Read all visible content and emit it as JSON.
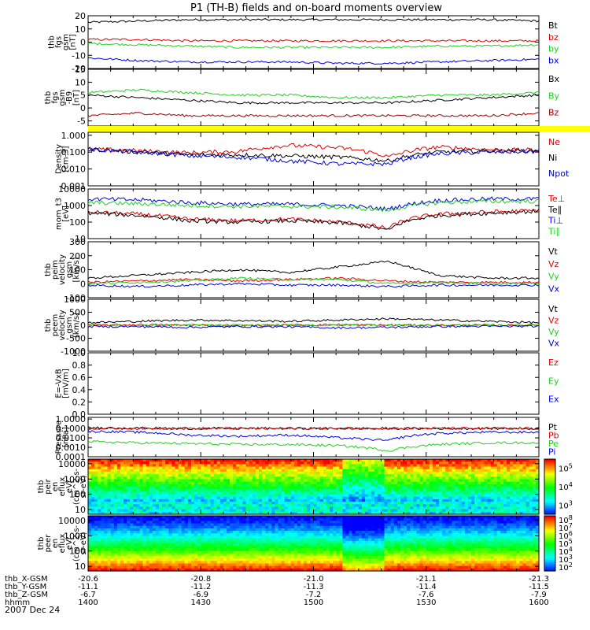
{
  "title": "P1 (TH-B) fields and on-board moments overview",
  "date_label": "2007 Dec 24",
  "colors": {
    "black": "#000000",
    "red": "#e00000",
    "green": "#20d020",
    "blue": "#0000e0",
    "darkred": "#a00000",
    "yellow": "#ffff00"
  },
  "chart_data": [
    {
      "type": "line",
      "ylabel": [
        "thb",
        "fgs",
        "gsm",
        "[nT]"
      ],
      "ylim": [
        -20,
        20
      ],
      "yticks": [
        "20",
        "10",
        "0",
        "-10",
        "-20"
      ],
      "series": [
        {
          "name": "Bt",
          "color": "#000000",
          "values": [
            15,
            16,
            17,
            17,
            17,
            17,
            17,
            17,
            17,
            16
          ]
        },
        {
          "name": "bz",
          "color": "#e00000",
          "values": [
            2,
            2,
            1,
            1,
            1,
            1,
            1,
            1,
            1,
            1
          ]
        },
        {
          "name": "by",
          "color": "#20d020",
          "values": [
            -1,
            -2,
            -3,
            -4,
            -4,
            -4,
            -4,
            -3,
            -3,
            -2
          ]
        },
        {
          "name": "bx",
          "color": "#0000e0",
          "values": [
            -12,
            -14,
            -15,
            -15,
            -15,
            -16,
            -16,
            -15,
            -14,
            -13
          ]
        }
      ]
    },
    {
      "type": "line",
      "ylabel": [
        "thb",
        "fgs",
        "gsm",
        "-B9",
        "[nT]"
      ],
      "ylim": [
        -7,
        15
      ],
      "yticks": [
        "15",
        "10",
        "5",
        "0",
        "-5"
      ],
      "series": [
        {
          "name": "Bx",
          "color": "#000000",
          "values": [
            5,
            4,
            3,
            2,
            2,
            2,
            2,
            3,
            4,
            5
          ]
        },
        {
          "name": "By",
          "color": "#20d020",
          "values": [
            6,
            7,
            6,
            5,
            5,
            4,
            4,
            5,
            5,
            6
          ]
        },
        {
          "name": "Bz",
          "color": "#a00000",
          "values": [
            -3,
            -2,
            -3,
            -3,
            -3,
            -3,
            -3,
            -3,
            -3,
            -2
          ]
        }
      ]
    },
    {
      "type": "line",
      "ylabel": [
        "Density",
        "[cm-3]"
      ],
      "scale": "log",
      "ylim": [
        0.001,
        1.5
      ],
      "yticks": [
        "1.000",
        "0.100",
        "0.010",
        "0.001"
      ],
      "series": [
        {
          "name": "Ne",
          "color": "#e00000",
          "values": [
            0.15,
            0.12,
            0.09,
            0.11,
            0.25,
            0.18,
            0.05,
            0.2,
            0.14,
            0.13
          ]
        },
        {
          "name": "Ni",
          "color": "#000000",
          "values": [
            0.15,
            0.1,
            0.07,
            0.07,
            0.06,
            0.05,
            0.03,
            0.1,
            0.12,
            0.12
          ]
        },
        {
          "name": "Npot",
          "color": "#0000e0",
          "values": [
            0.14,
            0.1,
            0.06,
            0.05,
            0.03,
            0.02,
            0.02,
            0.08,
            0.1,
            0.11
          ]
        }
      ]
    },
    {
      "type": "line",
      "ylabel": [
        "mom_t3",
        "[eV]"
      ],
      "scale": "log",
      "ylim": [
        10,
        10000
      ],
      "yticks": [
        "10000",
        "1000",
        "100",
        "10"
      ],
      "series": [
        {
          "name": "Te⊥",
          "color": "#e00000",
          "values": [
            400,
            300,
            150,
            120,
            150,
            100,
            40,
            300,
            400,
            500
          ]
        },
        {
          "name": "Te∥",
          "color": "#000000",
          "values": [
            350,
            250,
            120,
            100,
            120,
            90,
            30,
            250,
            350,
            450
          ]
        },
        {
          "name": "Ti⊥",
          "color": "#0000e0",
          "values": [
            2500,
            2200,
            1500,
            1200,
            1200,
            1000,
            600,
            2000,
            2500,
            2500
          ]
        },
        {
          "name": "Ti∥",
          "color": "#20d020",
          "values": [
            1500,
            1300,
            1000,
            900,
            900,
            800,
            500,
            1500,
            1800,
            1800
          ]
        }
      ]
    },
    {
      "type": "line",
      "ylabel": [
        "thb",
        "peim",
        "velocity",
        "gsm",
        "[km/s]"
      ],
      "ylim": [
        -100,
        300
      ],
      "yticks": [
        "300",
        "200",
        "100",
        "0",
        "-100"
      ],
      "series": [
        {
          "name": "Vt",
          "color": "#000000",
          "values": [
            40,
            60,
            80,
            100,
            80,
            120,
            160,
            60,
            40,
            40
          ]
        },
        {
          "name": "Vz",
          "color": "#e00000",
          "values": [
            10,
            20,
            30,
            20,
            30,
            40,
            20,
            10,
            10,
            10
          ]
        },
        {
          "name": "Vy",
          "color": "#20d020",
          "values": [
            0,
            10,
            20,
            40,
            30,
            30,
            0,
            10,
            0,
            0
          ]
        },
        {
          "name": "Vx",
          "color": "#0000e0",
          "values": [
            -10,
            -20,
            -10,
            0,
            -10,
            -10,
            -20,
            -10,
            -10,
            -10
          ]
        }
      ]
    },
    {
      "type": "line",
      "ylabel": [
        "thb",
        "peem",
        "velocity",
        "gsm",
        "[km/s]"
      ],
      "ylim": [
        -1000,
        1000
      ],
      "yticks": [
        "1000",
        "500",
        "0",
        "-500",
        "-1000"
      ],
      "series": [
        {
          "name": "Vt",
          "color": "#000000",
          "values": [
            100,
            150,
            200,
            180,
            150,
            200,
            250,
            200,
            150,
            100
          ]
        },
        {
          "name": "Vz",
          "color": "#e00000",
          "values": [
            0,
            20,
            0,
            -20,
            0,
            20,
            0,
            0,
            0,
            0
          ]
        },
        {
          "name": "Vy",
          "color": "#20d020",
          "values": [
            0,
            -20,
            10,
            0,
            10,
            0,
            10,
            0,
            0,
            0
          ]
        },
        {
          "name": "Vx",
          "color": "#0000e0",
          "values": [
            -50,
            -50,
            -80,
            -50,
            -60,
            -100,
            -80,
            -50,
            -40,
            -40
          ]
        }
      ]
    },
    {
      "type": "line",
      "ylabel": [
        "E=-VxB",
        "[mV/m]"
      ],
      "ylim": [
        0,
        1
      ],
      "yticks": [
        "1.0",
        "0.8",
        "0.6",
        "0.4",
        "0.2",
        "0.0"
      ],
      "series": [
        {
          "name": "Ez",
          "color": "#e00000",
          "values": []
        },
        {
          "name": "Ey",
          "color": "#20d020",
          "values": []
        },
        {
          "name": "Ex",
          "color": "#0000e0",
          "values": []
        }
      ]
    },
    {
      "type": "line",
      "ylabel": [
        "Pressure",
        "[nPa]"
      ],
      "scale": "log",
      "ylim": [
        0.0001,
        1.5
      ],
      "yticks": [
        "1.0000",
        "0.1000",
        "0.0100",
        "0.0010",
        "0.0001"
      ],
      "series": [
        {
          "name": "Pt",
          "color": "#000000",
          "values": [
            0.12,
            0.11,
            0.1,
            0.1,
            0.1,
            0.1,
            0.1,
            0.1,
            0.1,
            0.1
          ]
        },
        {
          "name": "Pb",
          "color": "#e00000",
          "values": [
            0.1,
            0.1,
            0.1,
            0.1,
            0.1,
            0.1,
            0.1,
            0.1,
            0.1,
            0.1
          ]
        },
        {
          "name": "Pe",
          "color": "#20d020",
          "values": [
            0.004,
            0.003,
            0.0025,
            0.002,
            0.002,
            0.0015,
            0.0004,
            0.002,
            0.003,
            0.003
          ]
        },
        {
          "name": "Pi",
          "color": "#0000e0",
          "values": [
            0.05,
            0.04,
            0.02,
            0.015,
            0.02,
            0.01,
            0.005,
            0.03,
            0.04,
            0.04
          ]
        }
      ]
    },
    {
      "type": "heatmap",
      "ylabel": [
        "thb",
        "peir",
        "en",
        "eflux",
        "eV/",
        "(cm^2-s-",
        "sr-eV)"
      ],
      "scale": "log",
      "ylim": [
        5,
        20000
      ],
      "yticks": [
        "10000",
        "1000",
        "100",
        "10"
      ],
      "colorbar_ticks": [
        "10^5",
        "10^4",
        "10^3"
      ]
    },
    {
      "type": "heatmap",
      "ylabel": [
        "thb",
        "peer",
        "en",
        "eflux",
        "eV/",
        "(cm^2-s-",
        "sr-eV)"
      ],
      "scale": "log",
      "ylim": [
        5,
        20000
      ],
      "yticks": [
        "10000",
        "1000",
        "100",
        "10"
      ],
      "colorbar_ticks": [
        "10^8",
        "10^7",
        "10^6",
        "10^5",
        "10^4",
        "10^3",
        "10^2"
      ]
    }
  ],
  "x_axis": {
    "row_labels": [
      "thb_X-GSM",
      "thb_Y-GSM",
      "thb_Z-GSM",
      "hhmm"
    ],
    "ticks": [
      {
        "X": "-20.6",
        "Y": "-11.1",
        "Z": "-6.7",
        "hhmm": "1400"
      },
      {
        "X": "-20.8",
        "Y": "-11.2",
        "Z": "-6.9",
        "hhmm": "1430"
      },
      {
        "X": "-21.0",
        "Y": "-11.3",
        "Z": "-7.2",
        "hhmm": "1500"
      },
      {
        "X": "-21.1",
        "Y": "-11.4",
        "Z": "-7.6",
        "hhmm": "1530"
      },
      {
        "X": "-21.3",
        "Y": "-11.5",
        "Z": "-7.9",
        "hhmm": "1600"
      }
    ]
  }
}
